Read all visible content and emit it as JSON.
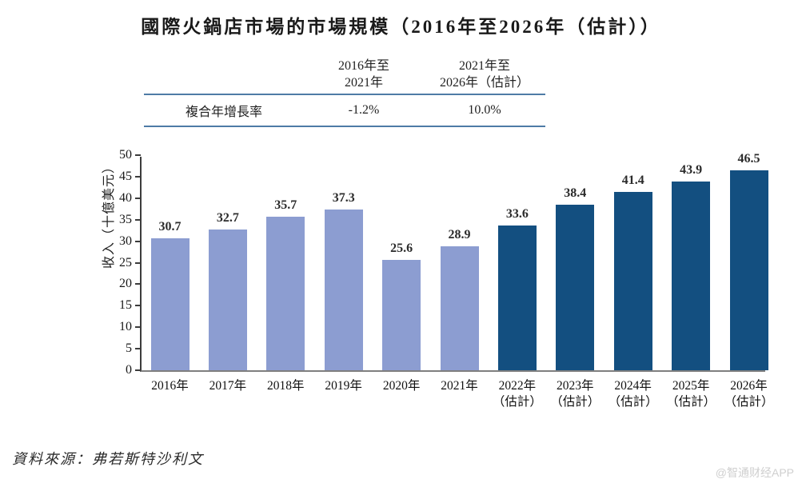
{
  "page": {
    "title": "國際火鍋店市場的市場規模（2016年至2026年（估計））",
    "source": "資料來源：弗若斯特沙利文",
    "watermark": "@智通财经APP"
  },
  "cagr_table": {
    "row_label": "複合年增長率",
    "columns": [
      {
        "header_line1": "2016年至",
        "header_line2": "2021年",
        "value": "-1.2%"
      },
      {
        "header_line1": "2021年至",
        "header_line2": "2026年（估計）",
        "value": "10.0%"
      }
    ]
  },
  "chart_data": {
    "type": "bar",
    "title": "國際火鍋店市場的市場規模（2016年至2026年（估計））",
    "xlabel": "",
    "ylabel": "收入（十億美元）",
    "ylim": [
      0,
      50
    ],
    "ytick_step": 5,
    "grid": false,
    "legend_position": "none",
    "categories": [
      "2016年",
      "2017年",
      "2018年",
      "2019年",
      "2020年",
      "2021年",
      "2022年",
      "2023年",
      "2024年",
      "2025年",
      "2026年"
    ],
    "sublabels": [
      "",
      "",
      "",
      "",
      "",
      "",
      "（估計）",
      "（估計）",
      "（估計）",
      "（估計）",
      "（估計）"
    ],
    "values": [
      30.7,
      32.7,
      35.7,
      37.3,
      25.6,
      28.9,
      33.6,
      38.4,
      41.4,
      43.9,
      46.5
    ],
    "estimated_start_index": 6,
    "colors": {
      "historical_bar": "#8C9DD1",
      "estimated_bar": "#134F80",
      "table_rule": "#4e7ba6",
      "axis": "#3c3c3c",
      "baseline": "#7f7f7f"
    }
  }
}
